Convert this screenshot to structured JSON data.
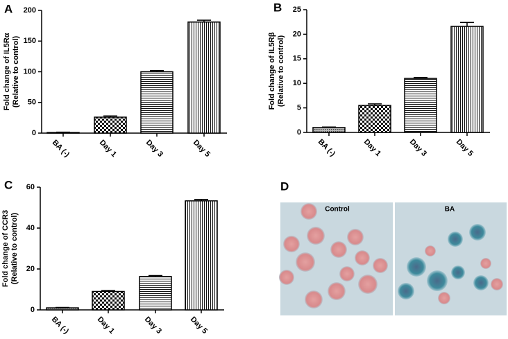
{
  "chart_data": [
    {
      "type": "bar",
      "panel_label": "A",
      "ylabel": [
        "Fold change of IL5Rα",
        "(Relative to control)"
      ],
      "categories": [
        "BA (-)",
        "Day 1",
        "Day 3",
        "Day 5"
      ],
      "values": [
        1,
        26,
        100,
        181
      ],
      "errors": [
        0.5,
        2,
        2,
        3
      ],
      "patterns": [
        "dots",
        "checker",
        "hlines",
        "vlines"
      ],
      "color": "#000000",
      "ylim": [
        0,
        200
      ],
      "yticks": [
        0,
        50,
        100,
        150,
        200
      ]
    },
    {
      "type": "bar",
      "panel_label": "B",
      "ylabel": [
        "Fold change of IL5Rβ",
        "(Relative to control)"
      ],
      "categories": [
        "BA (-)",
        "Day 1",
        "Day 3",
        "Day 5"
      ],
      "values": [
        1,
        5.5,
        11,
        21.6
      ],
      "errors": [
        0.1,
        0.3,
        0.2,
        0.8
      ],
      "patterns": [
        "dots",
        "checker",
        "hlines",
        "vlines"
      ],
      "color": "#000000",
      "ylim": [
        0,
        25
      ],
      "yticks": [
        0,
        5,
        10,
        15,
        20,
        25
      ]
    },
    {
      "type": "bar",
      "panel_label": "C",
      "ylabel": [
        "Fold change of CCR3",
        "(Relative to control)"
      ],
      "categories": [
        "BA (-)",
        "Day 1",
        "Day 3",
        "Day 5"
      ],
      "values": [
        1,
        9,
        16.3,
        53.3
      ],
      "errors": [
        0.2,
        0.5,
        0.5,
        0.7
      ],
      "patterns": [
        "dots",
        "checker",
        "hlines",
        "vlines"
      ],
      "color": "#000000",
      "ylim": [
        0,
        60
      ],
      "yticks": [
        0,
        20,
        40,
        60
      ]
    }
  ],
  "image_panel": {
    "panel_label": "D",
    "captions": [
      "Control",
      "BA"
    ]
  }
}
